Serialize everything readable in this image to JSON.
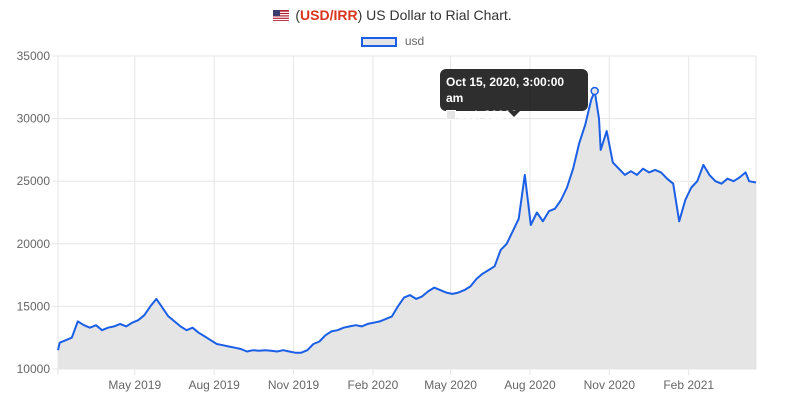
{
  "header": {
    "pair": "USD/IRR",
    "title_rest": "US Dollar to Rial Chart."
  },
  "icons": {
    "flag": "us-flag-icon"
  },
  "colors": {
    "line": "#1a5fe6",
    "fill": "#e5e5e5",
    "pair": "#d9341f",
    "grid": "#e6e6e6"
  },
  "legend": {
    "label": "usd"
  },
  "tooltip": {
    "title": "Oct 15, 2020, 3:00:00 am",
    "body": "usd: 32200"
  },
  "chart_data": {
    "type": "area",
    "title": "",
    "xlabel": "",
    "ylabel": "",
    "ylim": [
      10000,
      35000
    ],
    "yticks": [
      10000,
      15000,
      20000,
      25000,
      30000,
      35000
    ],
    "xlim": [
      "2019-02-01",
      "2021-04-20"
    ],
    "xticks": [
      {
        "date": "2019-05-01",
        "label": "May 2019"
      },
      {
        "date": "2019-08-01",
        "label": "Aug 2019"
      },
      {
        "date": "2019-11-01",
        "label": "Nov 2019"
      },
      {
        "date": "2020-02-01",
        "label": "Feb 2020"
      },
      {
        "date": "2020-05-01",
        "label": "May 2020"
      },
      {
        "date": "2020-08-01",
        "label": "Aug 2020"
      },
      {
        "date": "2020-11-01",
        "label": "Nov 2020"
      },
      {
        "date": "2021-02-01",
        "label": "Feb 2021"
      }
    ],
    "grid": true,
    "legend_position": "top",
    "series": [
      {
        "name": "usd",
        "points": [
          [
            "2019-02-01",
            11500
          ],
          [
            "2019-02-03",
            12100
          ],
          [
            "2019-02-10",
            12300
          ],
          [
            "2019-02-17",
            12500
          ],
          [
            "2019-02-24",
            13800
          ],
          [
            "2019-03-03",
            13500
          ],
          [
            "2019-03-10",
            13300
          ],
          [
            "2019-03-17",
            13500
          ],
          [
            "2019-03-24",
            13100
          ],
          [
            "2019-03-31",
            13300
          ],
          [
            "2019-04-07",
            13400
          ],
          [
            "2019-04-14",
            13600
          ],
          [
            "2019-04-21",
            13400
          ],
          [
            "2019-04-28",
            13700
          ],
          [
            "2019-05-05",
            13900
          ],
          [
            "2019-05-12",
            14300
          ],
          [
            "2019-05-19",
            15000
          ],
          [
            "2019-05-26",
            15600
          ],
          [
            "2019-06-02",
            14900
          ],
          [
            "2019-06-09",
            14200
          ],
          [
            "2019-06-16",
            13800
          ],
          [
            "2019-06-23",
            13400
          ],
          [
            "2019-06-30",
            13100
          ],
          [
            "2019-07-07",
            13300
          ],
          [
            "2019-07-14",
            12900
          ],
          [
            "2019-07-21",
            12600
          ],
          [
            "2019-07-28",
            12300
          ],
          [
            "2019-08-04",
            12000
          ],
          [
            "2019-08-11",
            11900
          ],
          [
            "2019-08-18",
            11800
          ],
          [
            "2019-08-25",
            11700
          ],
          [
            "2019-09-01",
            11600
          ],
          [
            "2019-09-08",
            11400
          ],
          [
            "2019-09-15",
            11500
          ],
          [
            "2019-09-22",
            11450
          ],
          [
            "2019-09-29",
            11500
          ],
          [
            "2019-10-06",
            11450
          ],
          [
            "2019-10-13",
            11400
          ],
          [
            "2019-10-20",
            11500
          ],
          [
            "2019-10-27",
            11400
          ],
          [
            "2019-11-03",
            11300
          ],
          [
            "2019-11-10",
            11300
          ],
          [
            "2019-11-17",
            11500
          ],
          [
            "2019-11-24",
            12000
          ],
          [
            "2019-12-01",
            12200
          ],
          [
            "2019-12-08",
            12700
          ],
          [
            "2019-12-15",
            13000
          ],
          [
            "2019-12-22",
            13100
          ],
          [
            "2019-12-29",
            13300
          ],
          [
            "2020-01-05",
            13400
          ],
          [
            "2020-01-12",
            13500
          ],
          [
            "2020-01-19",
            13400
          ],
          [
            "2020-01-26",
            13600
          ],
          [
            "2020-02-02",
            13700
          ],
          [
            "2020-02-09",
            13800
          ],
          [
            "2020-02-16",
            14000
          ],
          [
            "2020-02-23",
            14200
          ],
          [
            "2020-03-01",
            15000
          ],
          [
            "2020-03-08",
            15700
          ],
          [
            "2020-03-15",
            15900
          ],
          [
            "2020-03-22",
            15600
          ],
          [
            "2020-03-29",
            15800
          ],
          [
            "2020-04-05",
            16200
          ],
          [
            "2020-04-12",
            16500
          ],
          [
            "2020-04-19",
            16300
          ],
          [
            "2020-04-26",
            16100
          ],
          [
            "2020-05-03",
            16000
          ],
          [
            "2020-05-10",
            16100
          ],
          [
            "2020-05-17",
            16300
          ],
          [
            "2020-05-24",
            16600
          ],
          [
            "2020-05-31",
            17200
          ],
          [
            "2020-06-07",
            17600
          ],
          [
            "2020-06-14",
            17900
          ],
          [
            "2020-06-21",
            18200
          ],
          [
            "2020-06-28",
            19500
          ],
          [
            "2020-07-05",
            20000
          ],
          [
            "2020-07-12",
            21000
          ],
          [
            "2020-07-19",
            22000
          ],
          [
            "2020-07-26",
            25500
          ],
          [
            "2020-08-02",
            21500
          ],
          [
            "2020-08-09",
            22500
          ],
          [
            "2020-08-16",
            21800
          ],
          [
            "2020-08-23",
            22600
          ],
          [
            "2020-08-30",
            22800
          ],
          [
            "2020-09-06",
            23500
          ],
          [
            "2020-09-13",
            24500
          ],
          [
            "2020-09-20",
            26000
          ],
          [
            "2020-09-27",
            28000
          ],
          [
            "2020-10-04",
            29500
          ],
          [
            "2020-10-11",
            31500
          ],
          [
            "2020-10-15",
            32200
          ],
          [
            "2020-10-20",
            30000
          ],
          [
            "2020-10-22",
            27500
          ],
          [
            "2020-10-29",
            29000
          ],
          [
            "2020-11-05",
            26500
          ],
          [
            "2020-11-12",
            26000
          ],
          [
            "2020-11-19",
            25500
          ],
          [
            "2020-11-26",
            25800
          ],
          [
            "2020-12-03",
            25500
          ],
          [
            "2020-12-10",
            26000
          ],
          [
            "2020-12-17",
            25700
          ],
          [
            "2020-12-24",
            25900
          ],
          [
            "2020-12-31",
            25700
          ],
          [
            "2021-01-07",
            25200
          ],
          [
            "2021-01-14",
            24800
          ],
          [
            "2021-01-21",
            21800
          ],
          [
            "2021-01-28",
            23500
          ],
          [
            "2021-02-04",
            24500
          ],
          [
            "2021-02-11",
            25000
          ],
          [
            "2021-02-18",
            26300
          ],
          [
            "2021-02-25",
            25500
          ],
          [
            "2021-03-04",
            25000
          ],
          [
            "2021-03-11",
            24800
          ],
          [
            "2021-03-18",
            25200
          ],
          [
            "2021-03-25",
            25000
          ],
          [
            "2021-04-01",
            25300
          ],
          [
            "2021-04-08",
            25700
          ],
          [
            "2021-04-12",
            25000
          ],
          [
            "2021-04-20",
            24900
          ]
        ]
      }
    ],
    "highlight": {
      "date": "2020-10-15",
      "value": 32200
    }
  }
}
